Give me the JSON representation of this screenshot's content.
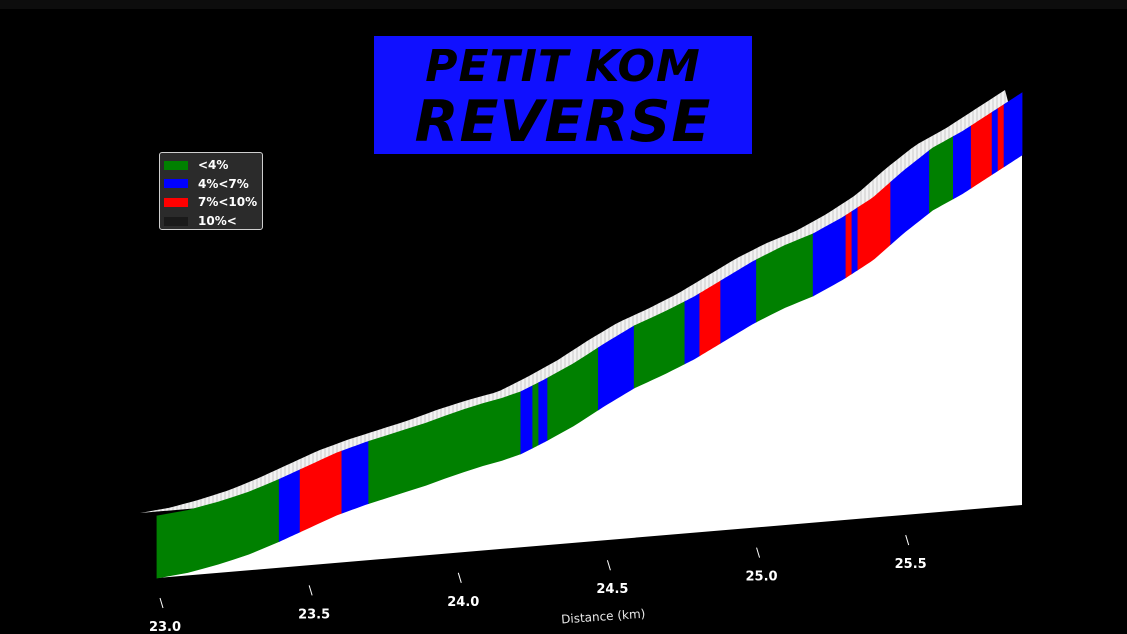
{
  "title": {
    "line1": "PETIT KOM",
    "line2": "REVERSE"
  },
  "chart_data": {
    "type": "area",
    "title": "PETIT KOM REVERSE",
    "xlabel": "Distance (km)",
    "ylabel": "",
    "xlim": [
      23.0,
      25.9
    ],
    "x_ticks": [
      "23.0",
      "23.5",
      "24.0",
      "24.5",
      "25.0",
      "25.5"
    ],
    "x_tick_values": [
      23.0,
      23.5,
      24.0,
      24.5,
      25.0,
      25.5
    ],
    "grid": false,
    "legend_position": "top-left",
    "legend": [
      {
        "label": "<4%",
        "color": "#008000"
      },
      {
        "label": "4%<7%",
        "color": "#0000ff"
      },
      {
        "label": "7%<10%",
        "color": "#ff0000"
      },
      {
        "label": "10%<",
        "color": "#1a1a1a"
      }
    ],
    "profile": {
      "x": [
        23.0,
        23.1,
        23.2,
        23.3,
        23.4,
        23.5,
        23.6,
        23.7,
        23.8,
        23.9,
        24.0,
        24.1,
        24.2,
        24.3,
        24.4,
        24.5,
        24.6,
        24.7,
        24.8,
        24.9,
        25.0,
        25.1,
        25.2,
        25.3,
        25.4,
        25.5,
        25.6,
        25.7,
        25.8,
        25.9
      ],
      "y": [
        0.0,
        0.2,
        0.6,
        1.1,
        1.8,
        2.6,
        3.4,
        4.0,
        4.5,
        5.0,
        5.6,
        6.1,
        6.5,
        7.4,
        8.4,
        9.6,
        10.7,
        11.5,
        12.4,
        13.5,
        14.6,
        15.5,
        16.2,
        17.2,
        18.4,
        20.1,
        21.6,
        22.6,
        23.8,
        25.0
      ]
    },
    "grade_segments": [
      {
        "start": 23.0,
        "end": 23.41,
        "grade": "<4%"
      },
      {
        "start": 23.41,
        "end": 23.48,
        "grade": "4%<7%"
      },
      {
        "start": 23.48,
        "end": 23.62,
        "grade": "7%<10%"
      },
      {
        "start": 23.62,
        "end": 23.71,
        "grade": "4%<7%"
      },
      {
        "start": 23.71,
        "end": 24.22,
        "grade": "<4%"
      },
      {
        "start": 24.22,
        "end": 24.26,
        "grade": "4%<7%"
      },
      {
        "start": 24.26,
        "end": 24.28,
        "grade": "<4%"
      },
      {
        "start": 24.28,
        "end": 24.31,
        "grade": "4%<7%"
      },
      {
        "start": 24.31,
        "end": 24.48,
        "grade": "<4%"
      },
      {
        "start": 24.48,
        "end": 24.6,
        "grade": "4%<7%"
      },
      {
        "start": 24.6,
        "end": 24.77,
        "grade": "<4%"
      },
      {
        "start": 24.77,
        "end": 24.82,
        "grade": "4%<7%"
      },
      {
        "start": 24.82,
        "end": 24.89,
        "grade": "7%<10%"
      },
      {
        "start": 24.89,
        "end": 25.01,
        "grade": "4%<7%"
      },
      {
        "start": 25.01,
        "end": 25.2,
        "grade": "<4%"
      },
      {
        "start": 25.2,
        "end": 25.31,
        "grade": "4%<7%"
      },
      {
        "start": 25.31,
        "end": 25.33,
        "grade": "7%<10%"
      },
      {
        "start": 25.33,
        "end": 25.35,
        "grade": "4%<7%"
      },
      {
        "start": 25.35,
        "end": 25.46,
        "grade": "7%<10%"
      },
      {
        "start": 25.46,
        "end": 25.59,
        "grade": "4%<7%"
      },
      {
        "start": 25.59,
        "end": 25.67,
        "grade": "<4%"
      },
      {
        "start": 25.67,
        "end": 25.73,
        "grade": "4%<7%"
      },
      {
        "start": 25.73,
        "end": 25.8,
        "grade": "7%<10%"
      },
      {
        "start": 25.8,
        "end": 25.82,
        "grade": "4%<7%"
      },
      {
        "start": 25.82,
        "end": 25.84,
        "grade": "7%<10%"
      },
      {
        "start": 25.84,
        "end": 25.9,
        "grade": "4%<7%"
      }
    ]
  }
}
